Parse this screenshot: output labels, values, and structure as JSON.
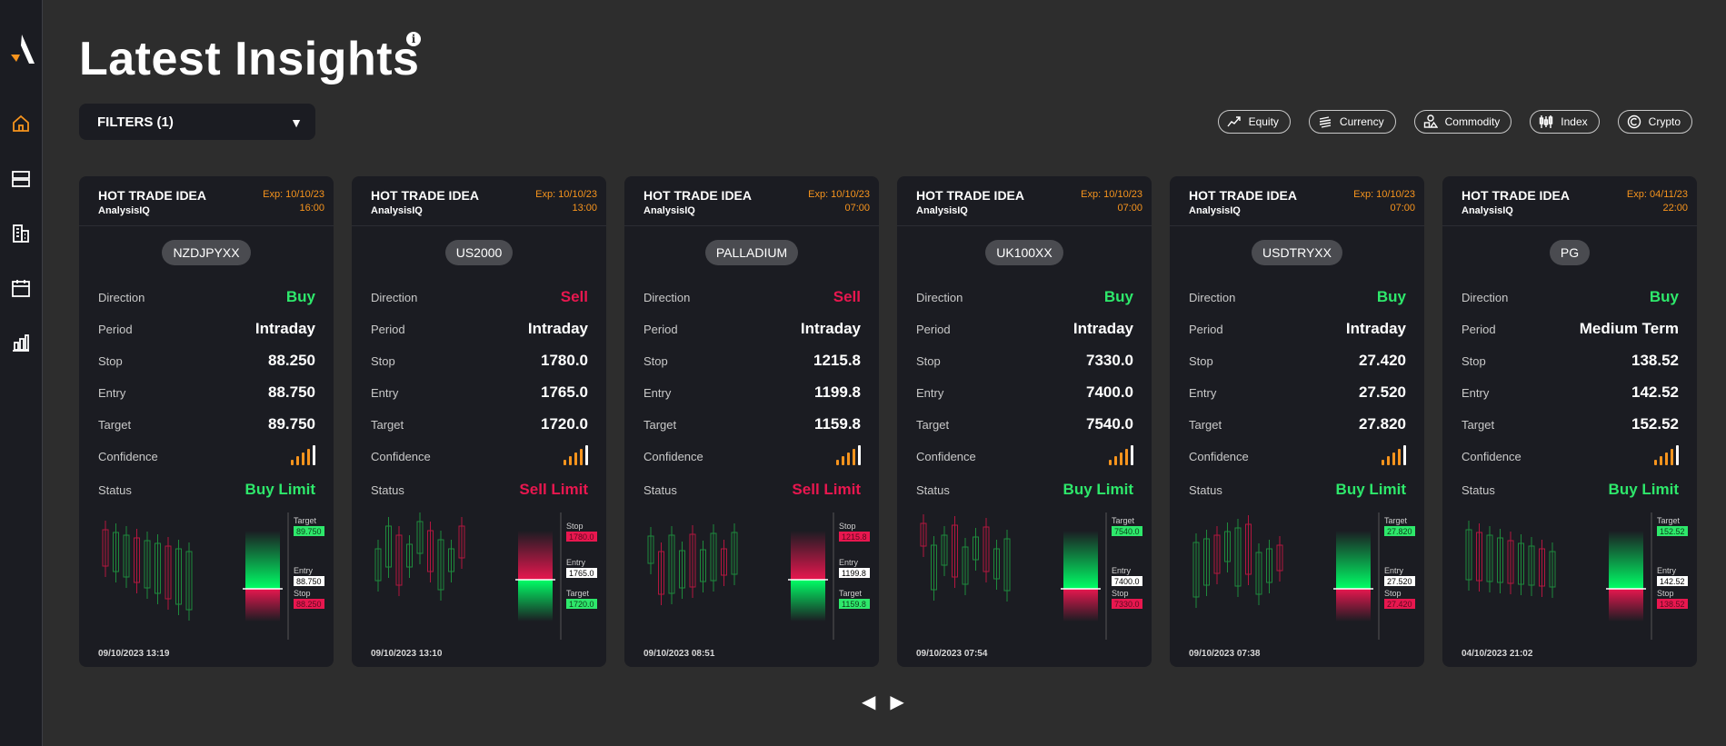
{
  "header": {
    "title": "Latest Insights",
    "info_icon": "info-icon"
  },
  "filters": {
    "label": "FILTERS (1)"
  },
  "asset_classes": [
    {
      "label": "Equity",
      "icon": "equity-chart-icon"
    },
    {
      "label": "Currency",
      "icon": "currency-icon"
    },
    {
      "label": "Commodity",
      "icon": "commodity-icon"
    },
    {
      "label": "Index",
      "icon": "index-icon"
    },
    {
      "label": "Crypto",
      "icon": "crypto-icon"
    }
  ],
  "sidebar": {
    "items": [
      {
        "name": "home",
        "icon": "home-icon",
        "active": true
      },
      {
        "name": "list",
        "icon": "list-icon",
        "active": false
      },
      {
        "name": "reports",
        "icon": "reports-icon",
        "active": false
      },
      {
        "name": "calendar",
        "icon": "calendar-icon",
        "active": false
      },
      {
        "name": "analytics",
        "icon": "bar-chart-icon",
        "active": false
      }
    ]
  },
  "labels": {
    "direction": "Direction",
    "period": "Period",
    "stop": "Stop",
    "entry": "Entry",
    "target": "Target",
    "confidence": "Confidence",
    "status": "Status"
  },
  "cards": [
    {
      "title": "HOT TRADE IDEA",
      "provider": "AnalysisIQ",
      "exp_line1": "Exp: 10/10/23",
      "exp_line2": "16:00",
      "symbol": "NZDJPYXX",
      "direction": "Buy",
      "period": "Intraday",
      "stop": "88.250",
      "entry": "88.750",
      "target": "89.750",
      "confidence": 5,
      "status": "Buy Limit",
      "chart_target_label": "Target",
      "chart_target": "89.750",
      "chart_entry_label": "Entry",
      "chart_entry": "88.750",
      "chart_stop_label": "Stop",
      "chart_stop": "88.250",
      "date": "09/10/2023 13:19"
    },
    {
      "title": "HOT TRADE IDEA",
      "provider": "AnalysisIQ",
      "exp_line1": "Exp: 10/10/23",
      "exp_line2": "13:00",
      "symbol": "US2000",
      "direction": "Sell",
      "period": "Intraday",
      "stop": "1780.0",
      "entry": "1765.0",
      "target": "1720.0",
      "confidence": 5,
      "status": "Sell Limit",
      "chart_stop_label": "Stop",
      "chart_stop": "1780.0",
      "chart_entry_label": "Entry",
      "chart_entry": "1765.0",
      "chart_target_label": "Target",
      "chart_target": "1720.0",
      "date": "09/10/2023 13:10"
    },
    {
      "title": "HOT TRADE IDEA",
      "provider": "AnalysisIQ",
      "exp_line1": "Exp: 10/10/23",
      "exp_line2": "07:00",
      "symbol": "PALLADIUM",
      "direction": "Sell",
      "period": "Intraday",
      "stop": "1215.8",
      "entry": "1199.8",
      "target": "1159.8",
      "confidence": 5,
      "status": "Sell Limit",
      "chart_stop_label": "Stop",
      "chart_stop": "1215.8",
      "chart_entry_label": "Entry",
      "chart_entry": "1199.8",
      "chart_target_label": "Target",
      "chart_target": "1159.8",
      "date": "09/10/2023 08:51"
    },
    {
      "title": "HOT TRADE IDEA",
      "provider": "AnalysisIQ",
      "exp_line1": "Exp: 10/10/23",
      "exp_line2": "07:00",
      "symbol": "UK100XX",
      "direction": "Buy",
      "period": "Intraday",
      "stop": "7330.0",
      "entry": "7400.0",
      "target": "7540.0",
      "confidence": 5,
      "status": "Buy Limit",
      "chart_target_label": "Target",
      "chart_target": "7540.0",
      "chart_entry_label": "Entry",
      "chart_entry": "7400.0",
      "chart_stop_label": "Stop",
      "chart_stop": "7330.0",
      "date": "09/10/2023 07:54"
    },
    {
      "title": "HOT TRADE IDEA",
      "provider": "AnalysisIQ",
      "exp_line1": "Exp: 10/10/23",
      "exp_line2": "07:00",
      "symbol": "USDTRYXX",
      "direction": "Buy",
      "period": "Intraday",
      "stop": "27.420",
      "entry": "27.520",
      "target": "27.820",
      "confidence": 5,
      "status": "Buy Limit",
      "chart_target_label": "Target",
      "chart_target": "27.820",
      "chart_entry_label": "Entry",
      "chart_entry": "27.520",
      "chart_stop_label": "Stop",
      "chart_stop": "27.420",
      "date": "09/10/2023 07:38"
    },
    {
      "title": "HOT TRADE IDEA",
      "provider": "AnalysisIQ",
      "exp_line1": "Exp: 04/11/23",
      "exp_line2": "22:00",
      "symbol": "PG",
      "direction": "Buy",
      "period": "Medium Term",
      "stop": "138.52",
      "entry": "142.52",
      "target": "152.52",
      "confidence": 5,
      "status": "Buy Limit",
      "chart_target_label": "Target",
      "chart_target": "152.52",
      "chart_entry_label": "Entry",
      "chart_entry": "142.52",
      "chart_stop_label": "Stop",
      "chart_stop": "138.52",
      "date": "04/10/2023 21:02"
    }
  ],
  "pager": {
    "prev": "◀",
    "next": "▶"
  },
  "colors": {
    "buy": "#2ee86b",
    "sell": "#e8174f",
    "accent": "#f7941d",
    "card_bg": "#1b1c22",
    "page_bg": "#2d2d2d"
  }
}
